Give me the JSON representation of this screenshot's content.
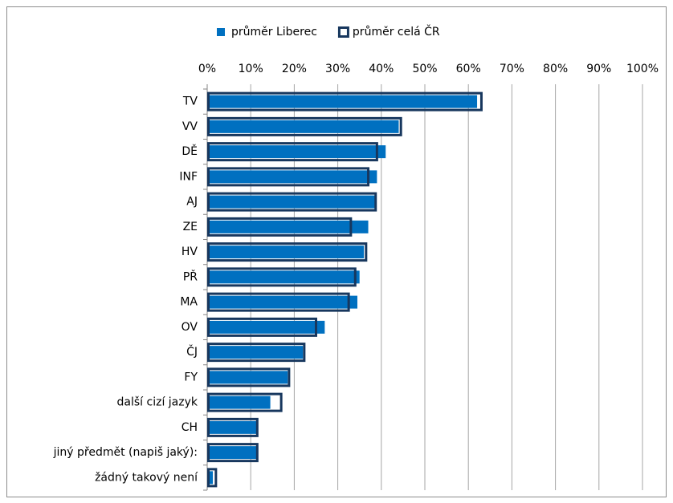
{
  "chart_data": {
    "type": "bar",
    "orientation": "horizontal",
    "categories": [
      "TV",
      "VV",
      "DĚ",
      "INF",
      "AJ",
      "ZE",
      "HV",
      "PŘ",
      "MA",
      "OV",
      "ČJ",
      "FY",
      "další cizí jazyk",
      "CH",
      "jiný předmět (napiš jaký):",
      "žádný takový není"
    ],
    "series": [
      {
        "name": "průměr Liberec",
        "color": "#0070c0",
        "values": [
          62,
          44,
          41,
          39,
          38.5,
          37,
          36,
          35,
          34.5,
          27,
          22,
          18.5,
          14.5,
          11.5,
          11.5,
          1.3
        ]
      },
      {
        "name": "průměr celá ČR",
        "color": "#17375e",
        "values": [
          63,
          44.5,
          39,
          37,
          38.7,
          33,
          36.5,
          34,
          32.5,
          25,
          22.3,
          18.8,
          17,
          11.5,
          11.5,
          2
        ]
      }
    ],
    "xlim": [
      0,
      100
    ],
    "xticks": [
      {
        "value": 0,
        "label": "0%"
      },
      {
        "value": 10,
        "label": "10%"
      },
      {
        "value": 20,
        "label": "20%"
      },
      {
        "value": 30,
        "label": "30%"
      },
      {
        "value": 40,
        "label": "40%"
      },
      {
        "value": 50,
        "label": "50%"
      },
      {
        "value": 60,
        "label": "60%"
      },
      {
        "value": 70,
        "label": "70%"
      },
      {
        "value": 80,
        "label": "80%"
      },
      {
        "value": 90,
        "label": "90%"
      },
      {
        "value": 100,
        "label": "100%"
      }
    ],
    "grid": true,
    "legend": "top"
  }
}
